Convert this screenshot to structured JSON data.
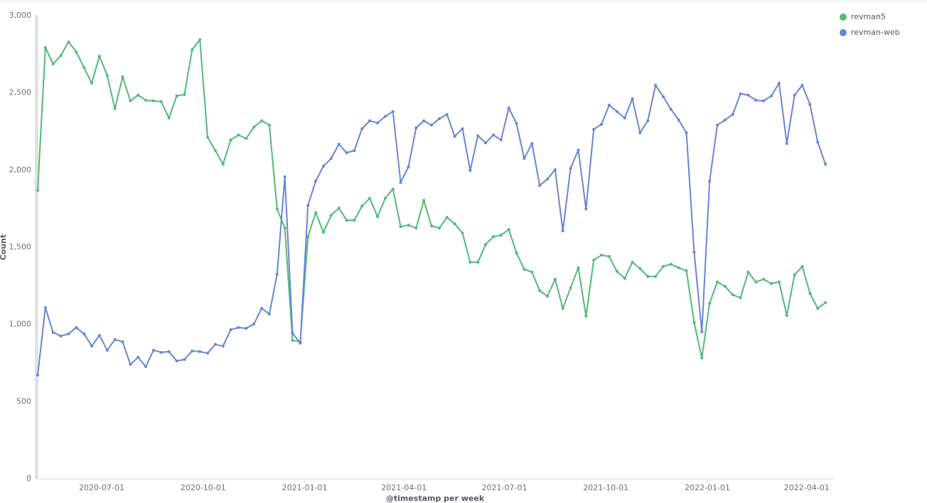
{
  "chart_data": {
    "type": "line",
    "x_label": "@timestamp per week",
    "y_label": "Count",
    "x": [
      "2020-05-04",
      "2020-05-11",
      "2020-05-18",
      "2020-05-25",
      "2020-06-01",
      "2020-06-08",
      "2020-06-15",
      "2020-06-22",
      "2020-06-29",
      "2020-07-06",
      "2020-07-13",
      "2020-07-20",
      "2020-07-27",
      "2020-08-03",
      "2020-08-10",
      "2020-08-17",
      "2020-08-24",
      "2020-08-31",
      "2020-09-07",
      "2020-09-14",
      "2020-09-21",
      "2020-09-28",
      "2020-10-05",
      "2020-10-12",
      "2020-10-19",
      "2020-10-26",
      "2020-11-02",
      "2020-11-09",
      "2020-11-16",
      "2020-11-23",
      "2020-11-30",
      "2020-12-07",
      "2020-12-14",
      "2020-12-21",
      "2020-12-28",
      "2021-01-04",
      "2021-01-11",
      "2021-01-18",
      "2021-01-25",
      "2021-02-01",
      "2021-02-08",
      "2021-02-15",
      "2021-02-22",
      "2021-03-01",
      "2021-03-08",
      "2021-03-15",
      "2021-03-22",
      "2021-03-29",
      "2021-04-05",
      "2021-04-12",
      "2021-04-19",
      "2021-04-26",
      "2021-05-03",
      "2021-05-10",
      "2021-05-17",
      "2021-05-24",
      "2021-05-31",
      "2021-06-07",
      "2021-06-14",
      "2021-06-21",
      "2021-06-28",
      "2021-07-05",
      "2021-07-12",
      "2021-07-19",
      "2021-07-26",
      "2021-08-02",
      "2021-08-09",
      "2021-08-16",
      "2021-08-23",
      "2021-08-30",
      "2021-09-06",
      "2021-09-13",
      "2021-09-20",
      "2021-09-27",
      "2021-10-04",
      "2021-10-11",
      "2021-10-18",
      "2021-10-25",
      "2021-11-01",
      "2021-11-08",
      "2021-11-15",
      "2021-11-22",
      "2021-11-29",
      "2021-12-06",
      "2021-12-13",
      "2021-12-20",
      "2021-12-27",
      "2022-01-03",
      "2022-01-10",
      "2022-01-17",
      "2022-01-24",
      "2022-01-31",
      "2022-02-07",
      "2022-02-14",
      "2022-02-21",
      "2022-02-28",
      "2022-03-07",
      "2022-03-14",
      "2022-03-21",
      "2022-03-28",
      "2022-04-04",
      "2022-04-11",
      "2022-04-18"
    ],
    "series": [
      {
        "name": "revman5",
        "color": "#54b979",
        "values": [
          1868,
          2793,
          2687,
          2742,
          2830,
          2765,
          2664,
          2563,
          2738,
          2613,
          2397,
          2604,
          2448,
          2485,
          2452,
          2448,
          2443,
          2337,
          2480,
          2489,
          2779,
          2844,
          2213,
          2126,
          2038,
          2195,
          2227,
          2204,
          2278,
          2319,
          2291,
          1748,
          1624,
          897,
          888,
          1569,
          1725,
          1597,
          1707,
          1753,
          1675,
          1675,
          1767,
          1817,
          1698,
          1817,
          1877,
          1633,
          1643,
          1624,
          1804,
          1638,
          1624,
          1693,
          1652,
          1592,
          1403,
          1403,
          1518,
          1569,
          1578,
          1615,
          1463,
          1357,
          1339,
          1219,
          1183,
          1293,
          1104,
          1238,
          1367,
          1054,
          1417,
          1449,
          1440,
          1344,
          1298,
          1403,
          1362,
          1311,
          1311,
          1376,
          1390,
          1367,
          1348,
          1012,
          782,
          1137,
          1275,
          1247,
          1192,
          1173,
          1339,
          1275,
          1293,
          1265,
          1275,
          1058,
          1321,
          1376,
          1201,
          1104,
          1141
        ]
      },
      {
        "name": "revman-web",
        "color": "#6b84d6",
        "values": [
          672,
          1109,
          948,
          925,
          939,
          980,
          939,
          860,
          929,
          833,
          902,
          888,
          741,
          787,
          727,
          833,
          819,
          824,
          764,
          773,
          828,
          824,
          814,
          870,
          860,
          966,
          980,
          975,
          1003,
          1104,
          1067,
          1325,
          1956,
          943,
          879,
          1771,
          1928,
          2025,
          2075,
          2167,
          2112,
          2126,
          2268,
          2319,
          2305,
          2347,
          2379,
          1919,
          2020,
          2273,
          2319,
          2291,
          2333,
          2360,
          2218,
          2268,
          1997,
          2222,
          2176,
          2227,
          2195,
          2402,
          2301,
          2075,
          2172,
          1900,
          1942,
          2002,
          1606,
          2011,
          2130,
          1748,
          2264,
          2296,
          2420,
          2379,
          2337,
          2462,
          2241,
          2319,
          2549,
          2475,
          2393,
          2324,
          2241,
          1468,
          952,
          1928,
          2291,
          2324,
          2360,
          2494,
          2485,
          2452,
          2448,
          2480,
          2563,
          2172,
          2485,
          2549,
          2425,
          2181,
          2038
        ]
      }
    ],
    "xlim": [
      "2020-05-04",
      "2022-04-25"
    ],
    "xticks": [
      "2020-07-01",
      "2020-10-01",
      "2021-01-01",
      "2021-04-01",
      "2021-07-01",
      "2021-10-01",
      "2022-01-01",
      "2022-04-01"
    ],
    "ylim": [
      0,
      3000
    ],
    "yticks": [
      0,
      500,
      {
        "value": 1000,
        "label": "1,000"
      },
      {
        "value": 1500,
        "label": "1,500"
      },
      {
        "value": 2000,
        "label": "2,000"
      },
      {
        "value": 2500,
        "label": "2,500"
      },
      {
        "value": 3000,
        "label": "3,000"
      }
    ],
    "grid": false,
    "legend": "top-right"
  }
}
